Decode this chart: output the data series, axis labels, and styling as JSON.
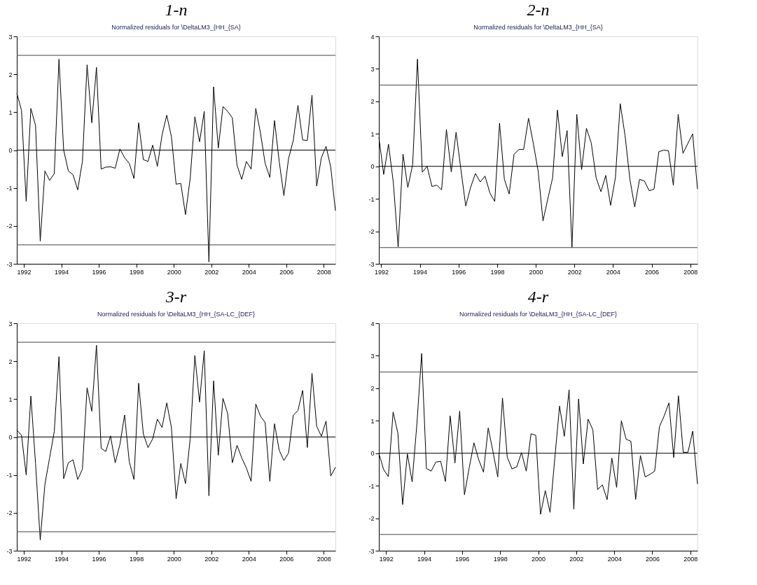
{
  "chart_data": [
    {
      "type": "line",
      "title": "1-n",
      "subtitle": "Normalized residuals for \\DeltaLM3_{HH_{SA}",
      "x": [
        1991.625,
        1991.875,
        1992.125,
        1992.375,
        1992.625,
        1992.875,
        1993.125,
        1993.375,
        1993.625,
        1993.875,
        1994.125,
        1994.375,
        1994.625,
        1994.875,
        1995.125,
        1995.375,
        1995.625,
        1995.875,
        1996.125,
        1996.375,
        1996.625,
        1996.875,
        1997.125,
        1997.375,
        1997.625,
        1997.875,
        1998.125,
        1998.375,
        1998.625,
        1998.875,
        1999.125,
        1999.375,
        1999.625,
        1999.875,
        2000.125,
        2000.375,
        2000.625,
        2000.875,
        2001.125,
        2001.375,
        2001.625,
        2001.875,
        2002.125,
        2002.375,
        2002.625,
        2002.875,
        2003.125,
        2003.375,
        2003.625,
        2003.875,
        2004.125,
        2004.375,
        2004.625,
        2004.875,
        2005.125,
        2005.375,
        2005.625,
        2005.875,
        2006.125,
        2006.375,
        2006.625,
        2006.875,
        2007.125,
        2007.375,
        2007.625,
        2007.875,
        2008.125,
        2008.375,
        2008.625
      ],
      "series": [
        {
          "color": "#000000",
          "values": [
            1.5,
            1.05,
            -1.35,
            1.1,
            0.65,
            -2.4,
            -0.55,
            -0.8,
            -0.62,
            2.4,
            0.0,
            -0.55,
            -0.65,
            -1.05,
            -0.3,
            2.25,
            0.72,
            2.18,
            -0.5,
            -0.45,
            -0.44,
            -0.48,
            0.03,
            -0.2,
            -0.35,
            -0.75,
            0.72,
            -0.25,
            -0.3,
            0.13,
            -0.43,
            0.4,
            0.92,
            0.35,
            -0.9,
            -0.88,
            -1.7,
            -0.75,
            0.88,
            0.22,
            1.02,
            -2.95,
            1.67,
            0.05,
            1.15,
            1.02,
            0.85,
            -0.4,
            -0.77,
            -0.3,
            -0.5,
            1.1,
            0.45,
            -0.35,
            -0.72,
            0.78,
            -0.3,
            -1.2,
            -0.22,
            0.25,
            1.18,
            0.27,
            0.25,
            1.45,
            -0.95,
            -0.2,
            0.1,
            -0.45,
            -1.6
          ]
        }
      ],
      "xlim": [
        1991.625,
        2008.625
      ],
      "xticks": [
        1992,
        1994,
        1996,
        1998,
        2000,
        2002,
        2004,
        2006,
        2008
      ],
      "ylim": [
        -3,
        3
      ],
      "yticks": [
        -3,
        -2,
        -1,
        0,
        1,
        2,
        3
      ],
      "ref_lines": [
        {
          "axis": "y",
          "value": 2.5,
          "color": "#444444"
        },
        {
          "axis": "y",
          "value": 0,
          "color": "#000000"
        },
        {
          "axis": "y",
          "value": -2.5,
          "color": "#444444"
        }
      ]
    },
    {
      "type": "line",
      "title": "2-n",
      "subtitle": "Normalized residuals for \\DeltaLM3_{HH_{SA}",
      "x": [
        1991.875,
        1992.125,
        1992.375,
        1992.625,
        1992.875,
        1993.125,
        1993.375,
        1993.625,
        1993.875,
        1994.125,
        1994.375,
        1994.625,
        1994.875,
        1995.125,
        1995.375,
        1995.625,
        1995.875,
        1996.125,
        1996.375,
        1996.625,
        1996.875,
        1997.125,
        1997.375,
        1997.625,
        1997.875,
        1998.125,
        1998.375,
        1998.625,
        1998.875,
        1999.125,
        1999.375,
        1999.625,
        1999.875,
        2000.125,
        2000.375,
        2000.625,
        2000.875,
        2001.125,
        2001.375,
        2001.625,
        2001.875,
        2002.125,
        2002.375,
        2002.625,
        2002.875,
        2003.125,
        2003.375,
        2003.625,
        2003.875,
        2004.125,
        2004.375,
        2004.625,
        2004.875,
        2005.125,
        2005.375,
        2005.625,
        2005.875,
        2006.125,
        2006.375,
        2006.625,
        2006.875,
        2007.125,
        2007.375,
        2007.625,
        2007.875,
        2008.125,
        2008.375
      ],
      "series": [
        {
          "color": "#000000",
          "values": [
            0.9,
            -0.25,
            0.68,
            -0.5,
            -2.48,
            0.38,
            -0.65,
            0.05,
            3.3,
            -0.18,
            0.0,
            -0.62,
            -0.58,
            -0.72,
            1.13,
            -0.17,
            1.05,
            -0.1,
            -1.22,
            -0.65,
            -0.22,
            -0.48,
            -0.3,
            -0.82,
            -1.08,
            1.33,
            -0.4,
            -0.85,
            0.37,
            0.52,
            0.52,
            1.48,
            0.7,
            -0.15,
            -1.68,
            -1.0,
            -0.35,
            1.73,
            0.3,
            1.1,
            -2.5,
            1.6,
            -0.1,
            1.17,
            0.72,
            -0.35,
            -0.78,
            -0.28,
            -1.2,
            -0.35,
            1.93,
            0.95,
            -0.4,
            -1.25,
            -0.4,
            -0.45,
            -0.75,
            -0.7,
            0.45,
            0.5,
            0.48,
            -0.58,
            1.6,
            0.4,
            0.7,
            1.0,
            -0.7
          ]
        }
      ],
      "xlim": [
        1991.875,
        2008.375
      ],
      "xticks": [
        1992,
        1994,
        1996,
        1998,
        2000,
        2002,
        2004,
        2006,
        2008
      ],
      "ylim": [
        -3,
        4
      ],
      "yticks": [
        -3,
        -2,
        -1,
        0,
        1,
        2,
        3,
        4
      ],
      "ref_lines": [
        {
          "axis": "y",
          "value": 2.5,
          "color": "#444444"
        },
        {
          "axis": "y",
          "value": 0,
          "color": "#000000"
        },
        {
          "axis": "y",
          "value": -2.5,
          "color": "#444444"
        }
      ]
    },
    {
      "type": "line",
      "title": "3-r",
      "subtitle": "Normalized residuals for \\DeltaLM3_{HH_{SA-LC_{DEF}",
      "x": [
        1991.625,
        1991.875,
        1992.125,
        1992.375,
        1992.625,
        1992.875,
        1993.125,
        1993.375,
        1993.625,
        1993.875,
        1994.125,
        1994.375,
        1994.625,
        1994.875,
        1995.125,
        1995.375,
        1995.625,
        1995.875,
        1996.125,
        1996.375,
        1996.625,
        1996.875,
        1997.125,
        1997.375,
        1997.625,
        1997.875,
        1998.125,
        1998.375,
        1998.625,
        1998.875,
        1999.125,
        1999.375,
        1999.625,
        1999.875,
        2000.125,
        2000.375,
        2000.625,
        2000.875,
        2001.125,
        2001.375,
        2001.625,
        2001.875,
        2002.125,
        2002.375,
        2002.625,
        2002.875,
        2003.125,
        2003.375,
        2003.625,
        2003.875,
        2004.125,
        2004.375,
        2004.625,
        2004.875,
        2005.125,
        2005.375,
        2005.625,
        2005.875,
        2006.125,
        2006.375,
        2006.625,
        2006.875,
        2007.125,
        2007.375,
        2007.625,
        2007.875,
        2008.125,
        2008.375,
        2008.625
      ],
      "series": [
        {
          "color": "#000000",
          "values": [
            0.18,
            0.05,
            -1.0,
            1.08,
            -0.7,
            -2.72,
            -1.25,
            -0.55,
            0.15,
            2.12,
            -1.1,
            -0.68,
            -0.6,
            -1.12,
            -0.85,
            1.3,
            0.68,
            2.42,
            -0.3,
            -0.38,
            0.03,
            -0.68,
            -0.2,
            0.58,
            -0.65,
            -1.12,
            1.42,
            0.08,
            -0.28,
            -0.05,
            0.47,
            0.25,
            0.9,
            0.25,
            -1.63,
            -0.7,
            -1.23,
            -0.05,
            2.15,
            0.92,
            2.28,
            -1.55,
            1.48,
            -0.48,
            1.02,
            0.62,
            -0.68,
            -0.22,
            -0.55,
            -0.82,
            -1.17,
            0.87,
            0.55,
            0.38,
            -1.17,
            0.35,
            -0.35,
            -0.62,
            -0.42,
            0.57,
            0.7,
            1.23,
            -0.28,
            1.68,
            0.28,
            0.02,
            0.42,
            -1.03,
            -0.8
          ]
        }
      ],
      "xlim": [
        1991.625,
        2008.625
      ],
      "xticks": [
        1992,
        1994,
        1996,
        1998,
        2000,
        2002,
        2004,
        2006,
        2008
      ],
      "ylim": [
        -3,
        3
      ],
      "yticks": [
        -3,
        -2,
        -1,
        0,
        1,
        2,
        3
      ],
      "ref_lines": [
        {
          "axis": "y",
          "value": 2.5,
          "color": "#444444"
        },
        {
          "axis": "y",
          "value": 0,
          "color": "#000000"
        },
        {
          "axis": "y",
          "value": -2.5,
          "color": "#444444"
        }
      ]
    },
    {
      "type": "line",
      "title": "4-r",
      "subtitle": "Normalized residuals for \\DeltaLM3_{HH_{SA-LC_{DEF}",
      "x": [
        1991.625,
        1991.875,
        1992.125,
        1992.375,
        1992.625,
        1992.875,
        1993.125,
        1993.375,
        1993.625,
        1993.875,
        1994.125,
        1994.375,
        1994.625,
        1994.875,
        1995.125,
        1995.375,
        1995.625,
        1995.875,
        1996.125,
        1996.375,
        1996.625,
        1996.875,
        1997.125,
        1997.375,
        1997.625,
        1997.875,
        1998.125,
        1998.375,
        1998.625,
        1998.875,
        1999.125,
        1999.375,
        1999.625,
        1999.875,
        2000.125,
        2000.375,
        2000.625,
        2000.875,
        2001.125,
        2001.375,
        2001.625,
        2001.875,
        2002.125,
        2002.375,
        2002.625,
        2002.875,
        2003.125,
        2003.375,
        2003.625,
        2003.875,
        2004.125,
        2004.375,
        2004.625,
        2004.875,
        2005.125,
        2005.375,
        2005.625,
        2005.875,
        2006.125,
        2006.375,
        2006.625,
        2006.875,
        2007.125,
        2007.375,
        2007.625,
        2007.875,
        2008.125,
        2008.375
      ],
      "series": [
        {
          "color": "#000000",
          "values": [
            0.0,
            -0.5,
            -0.72,
            1.27,
            0.62,
            -1.58,
            -0.02,
            -0.88,
            0.9,
            3.07,
            -0.47,
            -0.55,
            -0.27,
            -0.25,
            -0.87,
            1.15,
            -0.3,
            1.3,
            -1.28,
            -0.45,
            0.32,
            -0.2,
            -0.58,
            0.78,
            0.05,
            -0.73,
            1.7,
            -0.12,
            -0.48,
            -0.42,
            0.02,
            -0.55,
            0.6,
            0.55,
            -1.88,
            -1.15,
            -1.82,
            -0.15,
            1.45,
            0.52,
            1.95,
            -1.72,
            1.67,
            -0.33,
            1.05,
            0.72,
            -1.12,
            -0.97,
            -1.43,
            -0.15,
            -1.05,
            1.0,
            0.43,
            0.37,
            -1.42,
            -0.07,
            -0.73,
            -0.65,
            -0.55,
            0.82,
            1.15,
            1.55,
            -0.13,
            1.77,
            0.03,
            0.03,
            0.68,
            -0.95
          ]
        }
      ],
      "xlim": [
        1991.625,
        2008.375
      ],
      "xticks": [
        1992,
        1994,
        1996,
        1998,
        2000,
        2002,
        2004,
        2006,
        2008
      ],
      "ylim": [
        -3,
        4
      ],
      "yticks": [
        -3,
        -2,
        -1,
        0,
        1,
        2,
        3,
        4
      ],
      "ref_lines": [
        {
          "axis": "y",
          "value": 2.5,
          "color": "#444444"
        },
        {
          "axis": "y",
          "value": 0,
          "color": "#000000"
        },
        {
          "axis": "y",
          "value": -2.5,
          "color": "#444444"
        }
      ]
    }
  ]
}
